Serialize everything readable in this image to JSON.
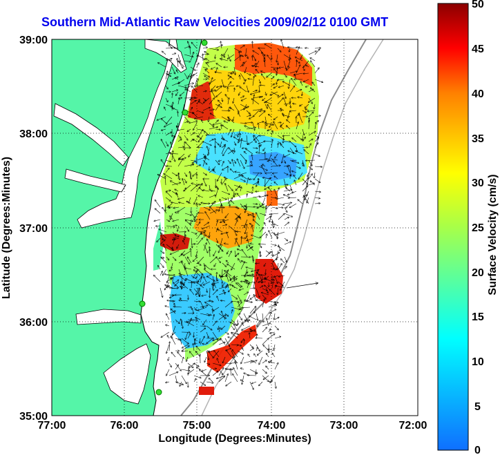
{
  "title": "Southern Mid-Atlantic Raw Velocities 2009/02/12 0100 GMT",
  "map": {
    "xlabel": "Longitude (Degrees:Minutes)",
    "ylabel": "Latitude (Degrees:Minutes)",
    "lon_ticks": [
      "77:00",
      "76:00",
      "75:00",
      "74:00",
      "73:00",
      "72:00"
    ],
    "lat_ticks": [
      "39:00",
      "38:00",
      "37:00",
      "36:00",
      "35:00"
    ],
    "lon_range": [
      -77,
      -72
    ],
    "lat_range": [
      35,
      39
    ],
    "grid": "dotted",
    "land_color": "#55f5a8",
    "sea_color": "#ffffff"
  },
  "colorbar": {
    "label": "Surface Velocity (cm/s)",
    "ticks": [
      "50",
      "45",
      "40",
      "35",
      "30",
      "25",
      "20",
      "15",
      "10",
      "5",
      "0"
    ],
    "range": [
      0,
      50
    ],
    "colormap": "jet"
  }
}
